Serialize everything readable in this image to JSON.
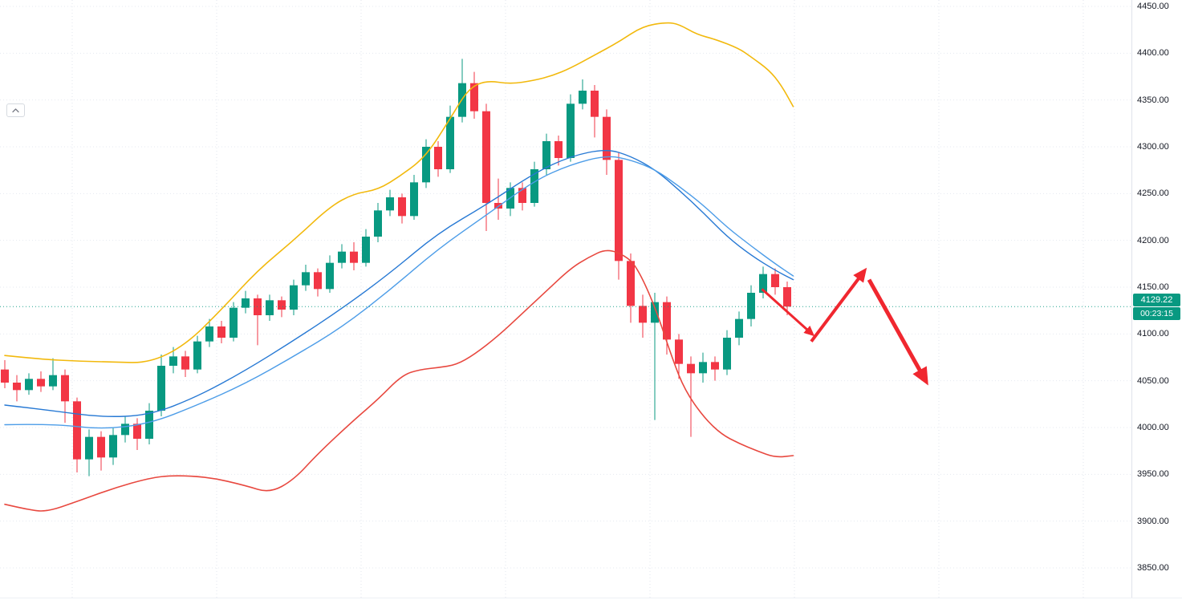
{
  "window": {
    "collapse_button": {
      "icon": "chevron-up-icon"
    }
  },
  "chart_data": {
    "type": "candlestick",
    "last_price": 4129.22,
    "last_price_label": "4129.22",
    "countdown": "00:23:15",
    "colors": {
      "up": "#089981",
      "down": "#f23645",
      "upper_band": "#f2b90d",
      "basis_fast": "#2779d4",
      "basis_slow": "#4d9de8",
      "lower_band": "#e8483f",
      "arrow": "#f0272f",
      "last_price": "#089981",
      "axis_text": "#131722",
      "grid": "#dbe0ea"
    },
    "price_axis": {
      "min": 3850,
      "max": 4450,
      "tick_step": 50,
      "ticks": [
        {
          "label": "4450.00",
          "value": 4450
        },
        {
          "label": "4400.00",
          "value": 4400
        },
        {
          "label": "4350.00",
          "value": 4350
        },
        {
          "label": "4300.00",
          "value": 4300
        },
        {
          "label": "4250.00",
          "value": 4250
        },
        {
          "label": "4200.00",
          "value": 4200
        },
        {
          "label": "4150.00",
          "value": 4150
        },
        {
          "label": "4100.00",
          "value": 4100
        },
        {
          "label": "4050.00",
          "value": 4050
        },
        {
          "label": "4000.00",
          "value": 4000
        },
        {
          "label": "3950.00",
          "value": 3950
        },
        {
          "label": "3900.00",
          "value": 3900
        },
        {
          "label": "3850.00",
          "value": 3850
        }
      ]
    },
    "candles": [
      [
        4062,
        4072,
        4042,
        4048
      ],
      [
        4048,
        4056,
        4028,
        4040
      ],
      [
        4040,
        4058,
        4035,
        4052
      ],
      [
        4052,
        4060,
        4038,
        4044
      ],
      [
        4044,
        4074,
        4040,
        4056
      ],
      [
        4056,
        4062,
        4005,
        4028
      ],
      [
        4028,
        4032,
        3952,
        3966
      ],
      [
        3966,
        3998,
        3948,
        3990
      ],
      [
        3990,
        3996,
        3954,
        3968
      ],
      [
        3968,
        4000,
        3960,
        3992
      ],
      [
        3992,
        4012,
        3984,
        4004
      ],
      [
        4004,
        4010,
        3976,
        3988
      ],
      [
        3988,
        4026,
        3982,
        4018
      ],
      [
        4018,
        4078,
        4012,
        4066
      ],
      [
        4066,
        4086,
        4058,
        4076
      ],
      [
        4076,
        4082,
        4054,
        4062
      ],
      [
        4062,
        4098,
        4058,
        4092
      ],
      [
        4092,
        4116,
        4086,
        4108
      ],
      [
        4108,
        4114,
        4090,
        4096
      ],
      [
        4096,
        4134,
        4092,
        4128
      ],
      [
        4128,
        4146,
        4122,
        4138
      ],
      [
        4138,
        4142,
        4088,
        4120
      ],
      [
        4120,
        4142,
        4114,
        4136
      ],
      [
        4136,
        4140,
        4118,
        4126
      ],
      [
        4126,
        4158,
        4120,
        4152
      ],
      [
        4152,
        4174,
        4146,
        4166
      ],
      [
        4166,
        4170,
        4140,
        4148
      ],
      [
        4148,
        4184,
        4144,
        4176
      ],
      [
        4176,
        4196,
        4170,
        4188
      ],
      [
        4188,
        4198,
        4168,
        4176
      ],
      [
        4176,
        4212,
        4172,
        4204
      ],
      [
        4204,
        4240,
        4198,
        4232
      ],
      [
        4232,
        4254,
        4226,
        4246
      ],
      [
        4246,
        4250,
        4218,
        4226
      ],
      [
        4226,
        4270,
        4222,
        4262
      ],
      [
        4262,
        4308,
        4256,
        4300
      ],
      [
        4300,
        4306,
        4268,
        4276
      ],
      [
        4276,
        4344,
        4272,
        4332
      ],
      [
        4332,
        4394,
        4326,
        4368
      ],
      [
        4368,
        4380,
        4330,
        4338
      ],
      [
        4338,
        4346,
        4210,
        4240
      ],
      [
        4240,
        4266,
        4222,
        4234
      ],
      [
        4234,
        4262,
        4226,
        4256
      ],
      [
        4256,
        4262,
        4232,
        4240
      ],
      [
        4240,
        4284,
        4236,
        4276
      ],
      [
        4276,
        4314,
        4270,
        4306
      ],
      [
        4306,
        4312,
        4280,
        4288
      ],
      [
        4288,
        4356,
        4284,
        4346
      ],
      [
        4346,
        4372,
        4340,
        4360
      ],
      [
        4360,
        4366,
        4310,
        4332
      ],
      [
        4332,
        4340,
        4270,
        4286
      ],
      [
        4286,
        4294,
        4158,
        4178
      ],
      [
        4178,
        4186,
        4112,
        4130
      ],
      [
        4130,
        4142,
        4096,
        4112
      ],
      [
        4112,
        4144,
        4008,
        4134
      ],
      [
        4134,
        4140,
        4078,
        4094
      ],
      [
        4094,
        4100,
        4052,
        4068
      ],
      [
        4068,
        4076,
        3990,
        4058
      ],
      [
        4058,
        4080,
        4048,
        4070
      ],
      [
        4070,
        4076,
        4050,
        4062
      ],
      [
        4062,
        4104,
        4056,
        4096
      ],
      [
        4096,
        4124,
        4088,
        4116
      ],
      [
        4116,
        4152,
        4108,
        4144
      ],
      [
        4144,
        4172,
        4138,
        4164
      ],
      [
        4164,
        4170,
        4142,
        4150
      ],
      [
        4150,
        4156,
        4120,
        4129.22
      ]
    ],
    "overlays": [
      {
        "name": "upper-band-line",
        "color_key": "upper_band",
        "stroke_width": 1.6,
        "points": [
          [
            0,
            4077
          ],
          [
            3,
            4073
          ],
          [
            6,
            4071
          ],
          [
            9,
            4070
          ],
          [
            12,
            4069
          ],
          [
            15,
            4088
          ],
          [
            18,
            4126
          ],
          [
            21,
            4168
          ],
          [
            24,
            4200
          ],
          [
            27,
            4236
          ],
          [
            29,
            4250
          ],
          [
            31,
            4254
          ],
          [
            33,
            4270
          ],
          [
            35,
            4290
          ],
          [
            37,
            4330
          ],
          [
            38.5,
            4362
          ],
          [
            40,
            4371
          ],
          [
            42,
            4367
          ],
          [
            44,
            4371
          ],
          [
            45.5,
            4376
          ],
          [
            47,
            4384
          ],
          [
            49,
            4398
          ],
          [
            51,
            4412
          ],
          [
            53,
            4429
          ],
          [
            55,
            4433
          ],
          [
            56,
            4431
          ],
          [
            57.5,
            4420
          ],
          [
            59,
            4415
          ],
          [
            61,
            4405
          ],
          [
            62,
            4396
          ],
          [
            63.5,
            4382
          ],
          [
            64.5,
            4366
          ],
          [
            65.5,
            4343
          ]
        ]
      },
      {
        "name": "basis-fast-line",
        "color_key": "basis_fast",
        "stroke_width": 1.4,
        "points": [
          [
            0,
            4024
          ],
          [
            4,
            4018
          ],
          [
            8,
            4011
          ],
          [
            12,
            4013
          ],
          [
            16,
            4033
          ],
          [
            20,
            4061
          ],
          [
            24,
            4093
          ],
          [
            28,
            4127
          ],
          [
            32,
            4165
          ],
          [
            36,
            4208
          ],
          [
            40,
            4238
          ],
          [
            44,
            4272
          ],
          [
            47,
            4290
          ],
          [
            50,
            4298
          ],
          [
            52,
            4290
          ],
          [
            54,
            4276
          ],
          [
            56,
            4254
          ],
          [
            58,
            4230
          ],
          [
            60,
            4204
          ],
          [
            62,
            4184
          ],
          [
            64,
            4168
          ],
          [
            65.5,
            4158
          ]
        ]
      },
      {
        "name": "basis-slow-line",
        "color_key": "basis_slow",
        "stroke_width": 1.4,
        "points": [
          [
            0,
            4003
          ],
          [
            4,
            4004
          ],
          [
            8,
            3998
          ],
          [
            12,
            4004
          ],
          [
            16,
            4024
          ],
          [
            20,
            4047
          ],
          [
            24,
            4076
          ],
          [
            28,
            4107
          ],
          [
            32,
            4147
          ],
          [
            36,
            4191
          ],
          [
            40,
            4227
          ],
          [
            44,
            4264
          ],
          [
            47,
            4281
          ],
          [
            50,
            4291
          ],
          [
            52,
            4286
          ],
          [
            54,
            4276
          ],
          [
            56,
            4258
          ],
          [
            58,
            4238
          ],
          [
            60,
            4214
          ],
          [
            62,
            4194
          ],
          [
            64,
            4175
          ],
          [
            65.5,
            4162
          ]
        ]
      },
      {
        "name": "lower-band-line",
        "color_key": "lower_band",
        "stroke_width": 1.6,
        "points": [
          [
            0,
            3918
          ],
          [
            2,
            3912
          ],
          [
            3.5,
            3910
          ],
          [
            6,
            3921
          ],
          [
            9,
            3935
          ],
          [
            12,
            3946
          ],
          [
            14,
            3949
          ],
          [
            17,
            3947
          ],
          [
            20,
            3938
          ],
          [
            22,
            3930
          ],
          [
            24,
            3944
          ],
          [
            26,
            3972
          ],
          [
            29,
            4008
          ],
          [
            31,
            4030
          ],
          [
            33,
            4056
          ],
          [
            34.5,
            4062
          ],
          [
            36,
            4064
          ],
          [
            37.5,
            4067
          ],
          [
            39,
            4078
          ],
          [
            41,
            4098
          ],
          [
            43,
            4122
          ],
          [
            45,
            4146
          ],
          [
            47,
            4170
          ],
          [
            48.5,
            4182
          ],
          [
            50,
            4191
          ],
          [
            51.5,
            4184
          ],
          [
            52.5,
            4172
          ],
          [
            54,
            4130
          ],
          [
            55.5,
            4072
          ],
          [
            56.5,
            4040
          ],
          [
            58,
            4012
          ],
          [
            59.5,
            3993
          ],
          [
            61,
            3983
          ],
          [
            62.5,
            3975
          ],
          [
            64,
            3968
          ],
          [
            65.5,
            3970
          ]
        ]
      }
    ],
    "annotations": {
      "arrows": [
        {
          "name": "drawn-arrow-down-small",
          "from": [
            62.9,
            4148
          ],
          "to": [
            66.8,
            4103
          ],
          "width": 3
        },
        {
          "name": "drawn-arrow-up",
          "from": [
            67.0,
            4092
          ],
          "to": [
            71.1,
            4162
          ],
          "width": 4
        },
        {
          "name": "drawn-arrow-down-big",
          "from": [
            71.8,
            4158
          ],
          "to": [
            76.2,
            4057
          ],
          "width": 5
        }
      ]
    }
  }
}
